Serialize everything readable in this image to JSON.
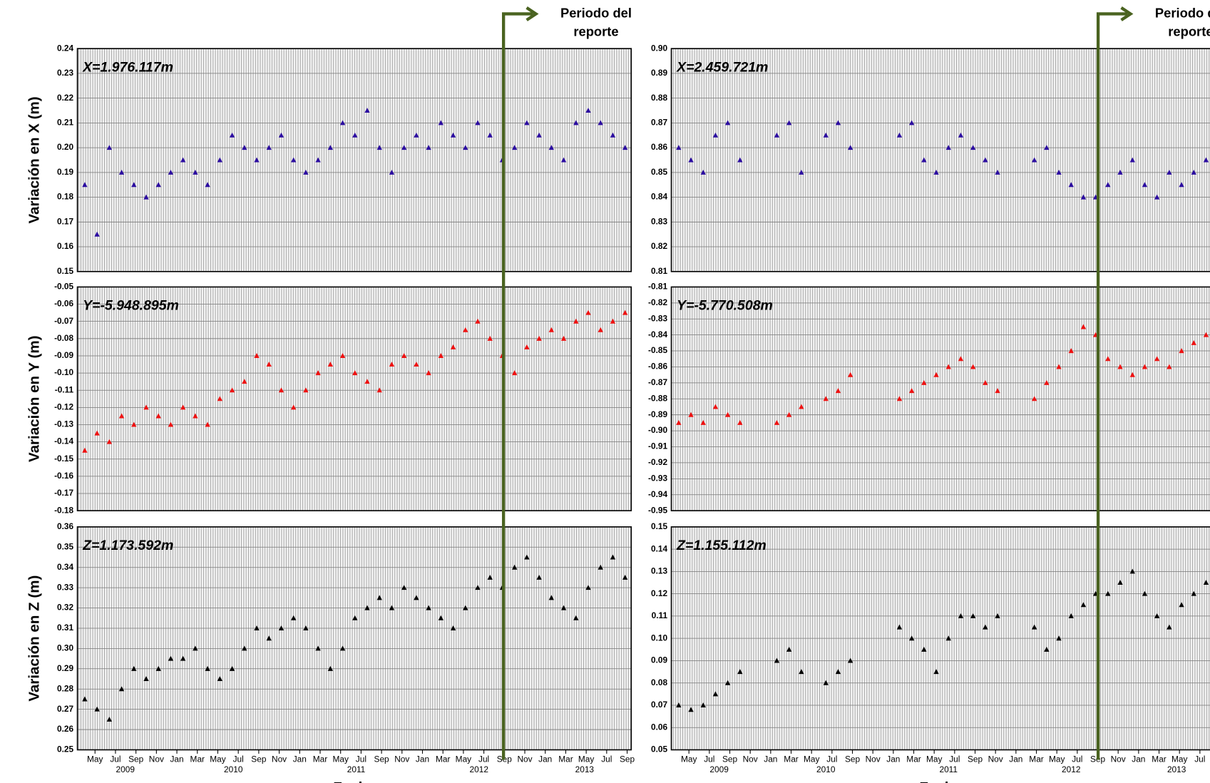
{
  "chart_data": [
    {
      "type": "scatter",
      "y_label": "Variación en X (m)",
      "annotation": "X=1.976.117m",
      "color": "#2b0ca0",
      "xlim": [
        2009.19,
        2013.7
      ],
      "ylim": [
        0.15,
        0.24
      ],
      "yticks": [
        0.15,
        0.16,
        0.17,
        0.18,
        0.19,
        {
          "value": 0.2,
          "label": "0.20"
        },
        0.21,
        0.22,
        0.23,
        0.24
      ],
      "x": [
        2009.25,
        2009.35,
        2009.45,
        2009.55,
        2009.65,
        2009.75,
        2009.85,
        2009.95,
        2010.05,
        2010.15,
        2010.25,
        2010.35,
        2010.45,
        2010.55,
        2010.65,
        2010.75,
        2010.85,
        2010.95,
        2011.05,
        2011.15,
        2011.25,
        2011.35,
        2011.45,
        2011.55,
        2011.65,
        2011.75,
        2011.85,
        2011.95,
        2012.05,
        2012.15,
        2012.25,
        2012.35,
        2012.45,
        2012.55,
        2012.65,
        2012.75,
        2012.85,
        2012.95,
        2013.05,
        2013.15,
        2013.25,
        2013.35,
        2013.45,
        2013.55,
        2013.65
      ],
      "values": [
        0.185,
        0.165,
        0.2,
        0.19,
        0.185,
        0.18,
        0.185,
        0.19,
        0.195,
        0.19,
        0.185,
        0.195,
        0.205,
        0.2,
        0.195,
        0.2,
        0.205,
        0.195,
        0.19,
        0.195,
        0.2,
        0.21,
        0.205,
        0.215,
        0.2,
        0.19,
        0.2,
        0.205,
        0.2,
        0.21,
        0.205,
        0.2,
        0.21,
        0.205,
        0.195,
        0.2,
        0.21,
        0.205,
        0.2,
        0.195,
        0.21,
        0.215,
        0.21,
        0.205,
        0.2
      ]
    },
    {
      "type": "scatter",
      "y_label": "Variación en Y (m)",
      "annotation": "Y=-5.948.895m",
      "color": "#ee1111",
      "xlim": [
        2009.19,
        2013.7
      ],
      "ylim": [
        -0.18,
        -0.05
      ],
      "yticks": [
        -0.18,
        -0.17,
        -0.16,
        -0.15,
        -0.14,
        -0.13,
        -0.12,
        -0.11,
        {
          "value": -0.1,
          "label": "-0.10"
        },
        -0.09,
        -0.08,
        -0.07,
        -0.06,
        -0.05
      ],
      "x": [
        2009.25,
        2009.35,
        2009.45,
        2009.55,
        2009.65,
        2009.75,
        2009.85,
        2009.95,
        2010.05,
        2010.15,
        2010.25,
        2010.35,
        2010.45,
        2010.55,
        2010.65,
        2010.75,
        2010.85,
        2010.95,
        2011.05,
        2011.15,
        2011.25,
        2011.35,
        2011.45,
        2011.55,
        2011.65,
        2011.75,
        2011.85,
        2011.95,
        2012.05,
        2012.15,
        2012.25,
        2012.35,
        2012.45,
        2012.55,
        2012.65,
        2012.75,
        2012.85,
        2012.95,
        2013.05,
        2013.15,
        2013.25,
        2013.35,
        2013.45,
        2013.55,
        2013.65
      ],
      "values": [
        -0.145,
        -0.135,
        -0.14,
        -0.125,
        -0.13,
        -0.12,
        -0.125,
        -0.13,
        -0.12,
        -0.125,
        -0.13,
        -0.115,
        -0.11,
        -0.105,
        -0.09,
        -0.095,
        -0.11,
        -0.12,
        -0.11,
        -0.1,
        -0.095,
        -0.09,
        -0.1,
        -0.105,
        -0.11,
        -0.095,
        -0.09,
        -0.095,
        -0.1,
        -0.09,
        -0.085,
        -0.075,
        -0.07,
        -0.08,
        -0.09,
        -0.1,
        -0.085,
        -0.08,
        -0.075,
        -0.08,
        -0.07,
        -0.065,
        -0.075,
        -0.07,
        -0.065
      ]
    },
    {
      "type": "scatter",
      "y_label": "Variación en Z (m)",
      "annotation": "Z=1.173.592m",
      "color": "#000000",
      "x_label": "Fecha",
      "xlim": [
        2009.19,
        2013.7
      ],
      "ylim": [
        0.25,
        0.36
      ],
      "yticks": [
        0.25,
        0.26,
        0.27,
        0.28,
        0.29,
        {
          "value": 0.3,
          "label": "0.30"
        },
        0.31,
        0.32,
        0.33,
        0.34,
        0.35,
        0.36
      ],
      "xticks": [
        {
          "value": 2009.3333,
          "label": "May"
        },
        {
          "value": 2009.5,
          "label": "Jul"
        },
        {
          "value": 2009.6667,
          "label": "Sep"
        },
        {
          "value": 2009.8333,
          "label": "Nov"
        },
        {
          "value": 2010,
          "label": "Jan"
        },
        {
          "value": 2010.1667,
          "label": "Mar"
        },
        {
          "value": 2010.3333,
          "label": "May"
        },
        {
          "value": 2010.5,
          "label": "Jul"
        },
        {
          "value": 2010.6667,
          "label": "Sep"
        },
        {
          "value": 2010.8333,
          "label": "Nov"
        },
        {
          "value": 2011,
          "label": "Jan"
        },
        {
          "value": 2011.1667,
          "label": "Mar"
        },
        {
          "value": 2011.3333,
          "label": "May"
        },
        {
          "value": 2011.5,
          "label": "Jul"
        },
        {
          "value": 2011.6667,
          "label": "Sep"
        },
        {
          "value": 2011.8333,
          "label": "Nov"
        },
        {
          "value": 2012,
          "label": "Jan"
        },
        {
          "value": 2012.1667,
          "label": "Mar"
        },
        {
          "value": 2012.3333,
          "label": "May"
        },
        {
          "value": 2012.5,
          "label": "Jul"
        },
        {
          "value": 2012.6667,
          "label": "Sep"
        },
        {
          "value": 2012.8333,
          "label": "Nov"
        },
        {
          "value": 2013,
          "label": "Jan"
        },
        {
          "value": 2013.1667,
          "label": "Mar"
        },
        {
          "value": 2013.3333,
          "label": "May"
        },
        {
          "value": 2013.5,
          "label": "Jul"
        },
        {
          "value": 2013.6667,
          "label": "Sep"
        }
      ],
      "year_labels": [
        {
          "value": 2009.58,
          "label": "2009"
        },
        {
          "value": 2010.46,
          "label": "2010"
        },
        {
          "value": 2011.46,
          "label": "2011"
        },
        {
          "value": 2012.46,
          "label": "2012"
        },
        {
          "value": 2013.32,
          "label": "2013"
        }
      ],
      "x": [
        2009.25,
        2009.35,
        2009.45,
        2009.55,
        2009.65,
        2009.75,
        2009.85,
        2009.95,
        2010.05,
        2010.15,
        2010.25,
        2010.35,
        2010.45,
        2010.55,
        2010.65,
        2010.75,
        2010.85,
        2010.95,
        2011.05,
        2011.15,
        2011.25,
        2011.35,
        2011.45,
        2011.55,
        2011.65,
        2011.75,
        2011.85,
        2011.95,
        2012.05,
        2012.15,
        2012.25,
        2012.35,
        2012.45,
        2012.55,
        2012.65,
        2012.75,
        2012.85,
        2012.95,
        2013.05,
        2013.15,
        2013.25,
        2013.35,
        2013.45,
        2013.55,
        2013.65
      ],
      "values": [
        0.275,
        0.27,
        0.265,
        0.28,
        0.29,
        0.285,
        0.29,
        0.295,
        0.295,
        0.3,
        0.29,
        0.285,
        0.29,
        0.3,
        0.31,
        0.305,
        0.31,
        0.315,
        0.31,
        0.3,
        0.29,
        0.3,
        0.315,
        0.32,
        0.325,
        0.32,
        0.33,
        0.325,
        0.32,
        0.315,
        0.31,
        0.32,
        0.33,
        0.335,
        0.33,
        0.34,
        0.345,
        0.335,
        0.325,
        0.32,
        0.315,
        0.33,
        0.34,
        0.345,
        0.335
      ]
    },
    {
      "type": "scatter",
      "annotation": "X=2.459.721m",
      "color": "#2b0ca0",
      "xlim": [
        2009.19,
        2013.58
      ],
      "ylim": [
        0.81,
        0.9
      ],
      "yticks": [
        0.81,
        0.82,
        0.83,
        0.84,
        0.85,
        0.86,
        0.87,
        0.88,
        0.89,
        {
          "value": 0.9,
          "label": "0.90"
        }
      ],
      "x": [
        2009.25,
        2009.35,
        2009.45,
        2009.55,
        2009.65,
        2009.75,
        2010.05,
        2010.15,
        2010.25,
        2010.45,
        2010.55,
        2010.65,
        2011.05,
        2011.15,
        2011.25,
        2011.35,
        2011.45,
        2011.55,
        2011.65,
        2011.75,
        2011.85,
        2012.15,
        2012.25,
        2012.35,
        2012.45,
        2012.55,
        2012.65,
        2012.75,
        2012.85,
        2012.95,
        2013.05,
        2013.15,
        2013.25,
        2013.35,
        2013.45,
        2013.55
      ],
      "values": [
        0.86,
        0.855,
        0.85,
        0.865,
        0.87,
        0.855,
        0.865,
        0.87,
        0.85,
        0.865,
        0.87,
        0.86,
        0.865,
        0.87,
        0.855,
        0.85,
        0.86,
        0.865,
        0.86,
        0.855,
        0.85,
        0.855,
        0.86,
        0.85,
        0.845,
        0.84,
        0.84,
        0.845,
        0.85,
        0.855,
        0.845,
        0.84,
        0.85,
        0.845,
        0.85,
        0.855
      ]
    },
    {
      "type": "scatter",
      "annotation": "Y=-5.770.508m",
      "color": "#ee1111",
      "xlim": [
        2009.19,
        2013.58
      ],
      "ylim": [
        -0.95,
        -0.81
      ],
      "yticks": [
        -0.95,
        -0.94,
        -0.93,
        -0.92,
        -0.91,
        {
          "value": -0.9,
          "label": "-0.90"
        },
        -0.89,
        -0.88,
        -0.87,
        -0.86,
        -0.85,
        -0.84,
        -0.83,
        -0.82,
        -0.81
      ],
      "x": [
        2009.25,
        2009.35,
        2009.45,
        2009.55,
        2009.65,
        2009.75,
        2010.05,
        2010.15,
        2010.25,
        2010.45,
        2010.55,
        2010.65,
        2011.05,
        2011.15,
        2011.25,
        2011.35,
        2011.45,
        2011.55,
        2011.65,
        2011.75,
        2011.85,
        2012.15,
        2012.25,
        2012.35,
        2012.45,
        2012.55,
        2012.65,
        2012.75,
        2012.85,
        2012.95,
        2013.05,
        2013.15,
        2013.25,
        2013.35,
        2013.45,
        2013.55
      ],
      "values": [
        -0.895,
        -0.89,
        -0.895,
        -0.885,
        -0.89,
        -0.895,
        -0.895,
        -0.89,
        -0.885,
        -0.88,
        -0.875,
        -0.865,
        -0.88,
        -0.875,
        -0.87,
        -0.865,
        -0.86,
        -0.855,
        -0.86,
        -0.87,
        -0.875,
        -0.88,
        -0.87,
        -0.86,
        -0.85,
        -0.835,
        -0.84,
        -0.855,
        -0.86,
        -0.865,
        -0.86,
        -0.855,
        -0.86,
        -0.85,
        -0.845,
        -0.84
      ]
    },
    {
      "type": "scatter",
      "annotation": "Z=1.155.112m",
      "color": "#000000",
      "x_label": "Fecha",
      "xlim": [
        2009.19,
        2013.58
      ],
      "ylim": [
        0.05,
        0.15
      ],
      "yticks": [
        0.05,
        0.06,
        0.07,
        0.08,
        0.09,
        {
          "value": 0.1,
          "label": "0.10"
        },
        0.11,
        0.12,
        0.13,
        0.14,
        0.15
      ],
      "xticks": [
        {
          "value": 2009.3333,
          "label": "May"
        },
        {
          "value": 2009.5,
          "label": "Jul"
        },
        {
          "value": 2009.6667,
          "label": "Sep"
        },
        {
          "value": 2009.8333,
          "label": "Nov"
        },
        {
          "value": 2010,
          "label": "Jan"
        },
        {
          "value": 2010.1667,
          "label": "Mar"
        },
        {
          "value": 2010.3333,
          "label": "May"
        },
        {
          "value": 2010.5,
          "label": "Jul"
        },
        {
          "value": 2010.6667,
          "label": "Sep"
        },
        {
          "value": 2010.8333,
          "label": "Nov"
        },
        {
          "value": 2011,
          "label": "Jan"
        },
        {
          "value": 2011.1667,
          "label": "Mar"
        },
        {
          "value": 2011.3333,
          "label": "May"
        },
        {
          "value": 2011.5,
          "label": "Jul"
        },
        {
          "value": 2011.6667,
          "label": "Sep"
        },
        {
          "value": 2011.8333,
          "label": "Nov"
        },
        {
          "value": 2012,
          "label": "Jan"
        },
        {
          "value": 2012.1667,
          "label": "Mar"
        },
        {
          "value": 2012.3333,
          "label": "May"
        },
        {
          "value": 2012.5,
          "label": "Jul"
        },
        {
          "value": 2012.6667,
          "label": "Sep"
        },
        {
          "value": 2012.8333,
          "label": "Nov"
        },
        {
          "value": 2013,
          "label": "Jan"
        },
        {
          "value": 2013.1667,
          "label": "Mar"
        },
        {
          "value": 2013.3333,
          "label": "May"
        },
        {
          "value": 2013.5,
          "label": "Jul"
        }
      ],
      "year_labels": [
        {
          "value": 2009.58,
          "label": "2009"
        },
        {
          "value": 2010.45,
          "label": "2010"
        },
        {
          "value": 2011.45,
          "label": "2011"
        },
        {
          "value": 2012.45,
          "label": "2012"
        },
        {
          "value": 2013.31,
          "label": "2013"
        }
      ],
      "x": [
        2009.25,
        2009.35,
        2009.45,
        2009.55,
        2009.65,
        2009.75,
        2010.05,
        2010.15,
        2010.25,
        2010.45,
        2010.55,
        2010.65,
        2011.05,
        2011.15,
        2011.25,
        2011.35,
        2011.45,
        2011.55,
        2011.65,
        2011.75,
        2011.85,
        2012.15,
        2012.25,
        2012.35,
        2012.45,
        2012.55,
        2012.65,
        2012.75,
        2012.85,
        2012.95,
        2013.05,
        2013.15,
        2013.25,
        2013.35,
        2013.45,
        2013.55
      ],
      "values": [
        0.07,
        0.068,
        0.07,
        0.075,
        0.08,
        0.085,
        0.09,
        0.095,
        0.085,
        0.08,
        0.085,
        0.09,
        0.105,
        0.1,
        0.095,
        0.085,
        0.1,
        0.11,
        0.11,
        0.105,
        0.11,
        0.105,
        0.095,
        0.1,
        0.11,
        0.115,
        0.12,
        0.12,
        0.125,
        0.13,
        0.12,
        0.11,
        0.105,
        0.115,
        0.12,
        0.125
      ]
    }
  ],
  "report_markers": [
    {
      "x": 2012.66,
      "text": [
        "Periodo del",
        "reporte"
      ],
      "color": "#4a6320"
    },
    {
      "x": 2012.67,
      "text": [
        "Periodo del",
        "reporte"
      ],
      "color": "#4a6320"
    }
  ]
}
